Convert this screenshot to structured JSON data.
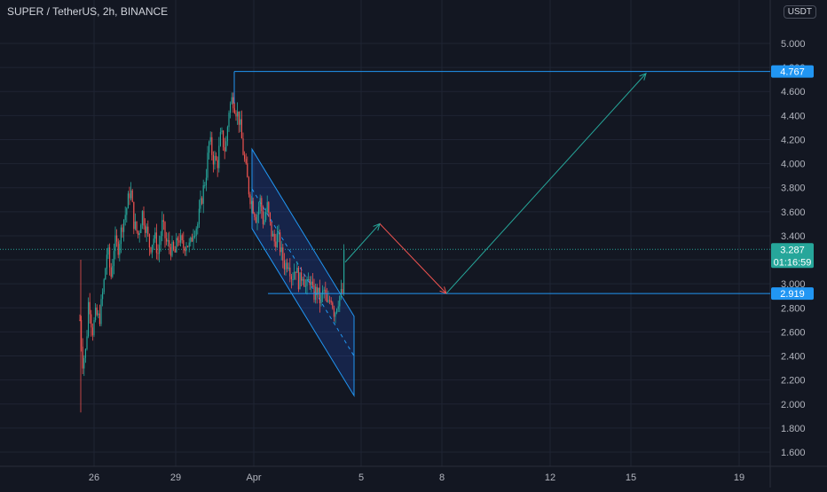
{
  "title": "SUPER / TetherUS, 2h, BINANCE",
  "currency": "USDT",
  "colors": {
    "background": "#131722",
    "grid": "#1f2433",
    "up": "#26a69a",
    "down": "#ef5350",
    "drawing_blue": "#2962ff",
    "line_blue": "#2196f3",
    "channel_fill": "#2962ff",
    "arrow_green": "#26a69a",
    "arrow_red": "#ef5350",
    "axis_text": "#b2b5be"
  },
  "chart_data": {
    "type": "candlestick",
    "title": "SUPER / TetherUS, 2h, BINANCE",
    "ylim": [
      1.45,
      5.15
    ],
    "y_ticks": [
      "5.000",
      "4.800",
      "4.600",
      "4.400",
      "4.200",
      "4.000",
      "3.800",
      "3.600",
      "3.400",
      "3.200",
      "3.000",
      "2.800",
      "2.600",
      "2.400",
      "2.200",
      "2.000",
      "1.800",
      "1.600"
    ],
    "x_ticks": [
      {
        "label": "26",
        "pos": 106
      },
      {
        "label": "29",
        "pos": 198
      },
      {
        "label": "Apr",
        "pos": 286
      },
      {
        "label": "5",
        "pos": 407
      },
      {
        "label": "8",
        "pos": 498
      },
      {
        "label": "12",
        "pos": 620
      },
      {
        "label": "15",
        "pos": 711
      },
      {
        "label": "19",
        "pos": 833
      }
    ],
    "price_labels": [
      {
        "value": "4.767",
        "price": 4.767,
        "color": "#2196f3"
      },
      {
        "value": "3.287",
        "price": 3.287,
        "color": "#26a69a",
        "countdown": "01:16:59"
      },
      {
        "value": "2.919",
        "price": 2.919,
        "color": "#2196f3"
      }
    ],
    "horizontal_lines": [
      {
        "price": 4.767,
        "from": 264,
        "color": "#2196f3"
      },
      {
        "price": 2.919,
        "from": 302,
        "color": "#2196f3"
      }
    ],
    "current_price": 3.287,
    "candles_x_start": 90,
    "candles_x_end": 389,
    "anchors": [
      [
        90,
        2.7
      ],
      [
        93,
        2.35
      ],
      [
        97,
        2.45
      ],
      [
        100,
        2.9
      ],
      [
        104,
        2.6
      ],
      [
        108,
        2.75
      ],
      [
        112,
        2.7
      ],
      [
        117,
        3.0
      ],
      [
        121,
        3.3
      ],
      [
        125,
        3.05
      ],
      [
        129,
        3.35
      ],
      [
        133,
        3.3
      ],
      [
        138,
        3.5
      ],
      [
        142,
        3.6
      ],
      [
        147,
        3.8
      ],
      [
        151,
        3.5
      ],
      [
        156,
        3.4
      ],
      [
        160,
        3.6
      ],
      [
        165,
        3.45
      ],
      [
        169,
        3.3
      ],
      [
        174,
        3.4
      ],
      [
        178,
        3.25
      ],
      [
        183,
        3.5
      ],
      [
        187,
        3.35
      ],
      [
        192,
        3.3
      ],
      [
        197,
        3.25
      ],
      [
        201,
        3.4
      ],
      [
        206,
        3.3
      ],
      [
        210,
        3.35
      ],
      [
        214,
        3.3
      ],
      [
        218,
        3.45
      ],
      [
        223,
        3.5
      ],
      [
        227,
        3.7
      ],
      [
        232,
        3.9
      ],
      [
        236,
        4.2
      ],
      [
        240,
        4.05
      ],
      [
        245,
        4.0
      ],
      [
        249,
        4.25
      ],
      [
        254,
        4.1
      ],
      [
        258,
        4.45
      ],
      [
        262,
        4.55
      ],
      [
        266,
        4.45
      ],
      [
        270,
        4.35
      ],
      [
        274,
        4.1
      ],
      [
        277,
        3.95
      ],
      [
        281,
        3.75
      ],
      [
        285,
        3.65
      ],
      [
        289,
        3.55
      ],
      [
        293,
        3.7
      ],
      [
        297,
        3.5
      ],
      [
        301,
        3.65
      ],
      [
        305,
        3.45
      ],
      [
        309,
        3.35
      ],
      [
        313,
        3.4
      ],
      [
        317,
        3.25
      ],
      [
        321,
        3.15
      ],
      [
        325,
        3.2
      ],
      [
        329,
        3.05
      ],
      [
        333,
        3.15
      ],
      [
        337,
        3.0
      ],
      [
        341,
        3.1
      ],
      [
        345,
        2.95
      ],
      [
        349,
        3.05
      ],
      [
        353,
        2.9
      ],
      [
        357,
        2.95
      ],
      [
        361,
        2.85
      ],
      [
        365,
        2.95
      ],
      [
        369,
        2.8
      ],
      [
        373,
        2.9
      ],
      [
        377,
        2.75
      ],
      [
        380,
        2.85
      ],
      [
        383,
        2.9
      ],
      [
        386,
        2.92
      ],
      [
        389,
        3.287
      ]
    ],
    "channel": {
      "pts": [
        [
          284,
          4.12
        ],
        [
          399,
          2.73
        ],
        [
          399,
          2.07
        ],
        [
          284,
          3.46
        ]
      ],
      "midline": [
        [
          284,
          3.79
        ],
        [
          399,
          2.4
        ]
      ]
    },
    "arrows": [
      {
        "color": "#26a69a",
        "from": [
          389,
          3.18
        ],
        "to": [
          428,
          3.5
        ]
      },
      {
        "color": "#ef5350",
        "from": [
          428,
          3.5
        ],
        "to": [
          503,
          2.92
        ]
      },
      {
        "color": "#26a69a",
        "from": [
          503,
          2.92
        ],
        "to": [
          728,
          4.75
        ]
      }
    ]
  }
}
